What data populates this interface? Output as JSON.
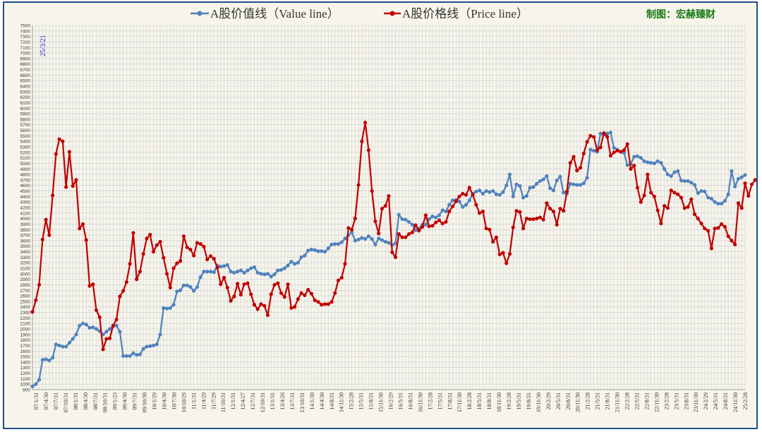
{
  "colors": {
    "value": "#4f81bd",
    "price": "#c00000",
    "credit": "#1a7a1a",
    "annotation": "#1f1fd4",
    "background": "#f7f5ea",
    "border": "#1f4e8c"
  },
  "legend": {
    "value_label": "A股价值线（Value line）",
    "price_label": "A股价格线（Price line）",
    "credit": "制图：宏赫臻财",
    "position": "top"
  },
  "chart_data": {
    "type": "line",
    "title": "",
    "xlabel": "",
    "ylabel": "",
    "ylim": [
      900,
      7500
    ],
    "ytick_step": 100,
    "grid": true,
    "annotation": "25/3/21",
    "x_tick_labels": [
      "07/1/31",
      "07/4/30",
      "07/7/31",
      "07/10/31",
      "08/1/31",
      "08/4/30",
      "08/7/31",
      "08/10/31",
      "09/1/23",
      "09/4/30",
      "09/7/31",
      "09/10/30",
      "10/1/29",
      "10/4/30",
      "10/7/30",
      "10/10/29",
      "11/1/31",
      "11/4/29",
      "11/7/29",
      "11/10/31",
      "12/1/31",
      "12/4/27",
      "12/7/31",
      "12/10/31",
      "13/1/31",
      "13/4/26",
      "13/7/31",
      "13/10/31",
      "14/1/30",
      "14/4/30",
      "14/8/31",
      "14/11/30",
      "15/2/28",
      "15/5/31",
      "15/8/31",
      "15/11/30",
      "16/2/29",
      "16/5/31",
      "16/8/31",
      "16/11/30",
      "17/2/28",
      "17/5/31",
      "17/8/31",
      "17/11/30",
      "18/2/28",
      "18/5/31",
      "18/8/31",
      "18/11/30",
      "19/2/28",
      "19/5/31",
      "19/8/31",
      "19/11/30",
      "20/2/29",
      "20/5/31",
      "20/8/31",
      "20/11/30",
      "21/2/28",
      "21/5/31",
      "21/8/31",
      "21/11/30",
      "22/2/28",
      "22/5/31",
      "22/8/31",
      "22/11/30",
      "23/2/28",
      "23/5/31",
      "23/8/31",
      "23/11/30",
      "24/2/29",
      "24/5/31",
      "24/8/31",
      "24/11/30",
      "25/2/28"
    ],
    "series": [
      {
        "name": "A股价值线（Value line）",
        "values": [
          960,
          1000,
          1080,
          1440,
          1450,
          1430,
          1480,
          1720,
          1700,
          1680,
          1680,
          1750,
          1820,
          1900,
          2060,
          2100,
          2080,
          2020,
          2030,
          2000,
          1960,
          1900,
          1950,
          2000,
          2050,
          2060,
          1950,
          1510,
          1510,
          1510,
          1560,
          1530,
          1540,
          1640,
          1680,
          1690,
          1700,
          1720,
          1900,
          2380,
          2370,
          2380,
          2440,
          2680,
          2700,
          2790,
          2790,
          2760,
          2690,
          2760,
          2940,
          3040,
          3040,
          3040,
          3030,
          3150,
          3130,
          3140,
          3160,
          3040,
          3020,
          3040,
          3060,
          3020,
          3060,
          3100,
          3120,
          3020,
          3000,
          2990,
          3000,
          2950,
          2990,
          3060,
          3070,
          3100,
          3150,
          3220,
          3180,
          3200,
          3300,
          3330,
          3420,
          3440,
          3430,
          3410,
          3410,
          3400,
          3460,
          3530,
          3540,
          3540,
          3570,
          3640,
          3700,
          3750,
          3600,
          3620,
          3650,
          3630,
          3680,
          3630,
          3530,
          3640,
          3610,
          3580,
          3560,
          3520,
          3550,
          4070,
          3990,
          3980,
          3940,
          3890,
          3790,
          3820,
          3890,
          3890,
          3990,
          4040,
          4020,
          4060,
          4150,
          4130,
          4250,
          4330,
          4340,
          4310,
          4210,
          4250,
          4330,
          4450,
          4490,
          4510,
          4450,
          4500,
          4480,
          4500,
          4440,
          4430,
          4480,
          4600,
          4800,
          4400,
          4620,
          4590,
          4380,
          4410,
          4560,
          4570,
          4630,
          4680,
          4710,
          4770,
          4550,
          4510,
          4690,
          4760,
          4470,
          4450,
          4630,
          4620,
          4610,
          4610,
          4640,
          4740,
          5250,
          5230,
          5210,
          5540,
          5520,
          5540,
          5560,
          5280,
          5250,
          5210,
          5190,
          4970,
          4990,
          5120,
          5130,
          5100,
          5040,
          5020,
          5010,
          5000,
          5040,
          5010,
          4900,
          4800,
          4770,
          4840,
          4860,
          4690,
          4680,
          4680,
          4650,
          4610,
          4460,
          4500,
          4490,
          4380,
          4360,
          4300,
          4270,
          4270,
          4320,
          4440,
          4860,
          4580,
          4720,
          4750,
          4790
        ]
      },
      {
        "name": "A股价格线（Price line）",
        "values": [
          2310,
          2520,
          2800,
          3620,
          3980,
          3700,
          4420,
          5170,
          5440,
          5400,
          4570,
          5210,
          4590,
          4700,
          3820,
          3900,
          3610,
          2780,
          2810,
          2340,
          2210,
          1630,
          1820,
          1830,
          2060,
          2170,
          2590,
          2690,
          2850,
          3180,
          3740,
          2900,
          3040,
          3360,
          3640,
          3710,
          3400,
          3520,
          3580,
          3290,
          3000,
          2750,
          3100,
          3190,
          3230,
          3680,
          3480,
          3440,
          3330,
          3560,
          3540,
          3490,
          3260,
          3320,
          3270,
          3110,
          2810,
          2930,
          2750,
          2510,
          2590,
          2820,
          2620,
          2810,
          2830,
          2630,
          2440,
          2360,
          2450,
          2420,
          2250,
          2630,
          2800,
          2830,
          2650,
          2580,
          2810,
          2380,
          2400,
          2540,
          2650,
          2610,
          2710,
          2640,
          2520,
          2490,
          2440,
          2450,
          2450,
          2490,
          2650,
          2880,
          2930,
          3180,
          3830,
          3800,
          4000,
          4610,
          5400,
          5740,
          5240,
          4500,
          3950,
          3730,
          4180,
          4230,
          4410,
          3390,
          3300,
          3720,
          3660,
          3660,
          3720,
          3750,
          3880,
          3780,
          3850,
          4060,
          3860,
          3870,
          3930,
          3970,
          3910,
          3940,
          4130,
          4220,
          4310,
          4400,
          4450,
          4430,
          4560,
          4430,
          4250,
          4100,
          4130,
          3820,
          3800,
          3580,
          3660,
          3350,
          3380,
          3190,
          3360,
          3840,
          4140,
          4120,
          3820,
          4000,
          3990,
          3990,
          4000,
          4020,
          3980,
          4280,
          4180,
          4130,
          3890,
          4180,
          4140,
          4490,
          5010,
          5120,
          4870,
          4920,
          5180,
          5390,
          5500,
          5480,
          5240,
          5290,
          5550,
          5480,
          5140,
          5200,
          5230,
          5210,
          5240,
          5350,
          4900,
          4960,
          4560,
          4300,
          4420,
          4800,
          4470,
          4400,
          4150,
          3910,
          4230,
          4190,
          4510,
          4470,
          4440,
          4380,
          4190,
          4210,
          4350,
          4080,
          4000,
          3910,
          3820,
          3780,
          3460,
          3820,
          3830,
          3900,
          3850,
          3680,
          3600,
          3530,
          4280,
          4190,
          4640,
          4410,
          4620,
          4700,
          4650
        ]
      }
    ]
  }
}
